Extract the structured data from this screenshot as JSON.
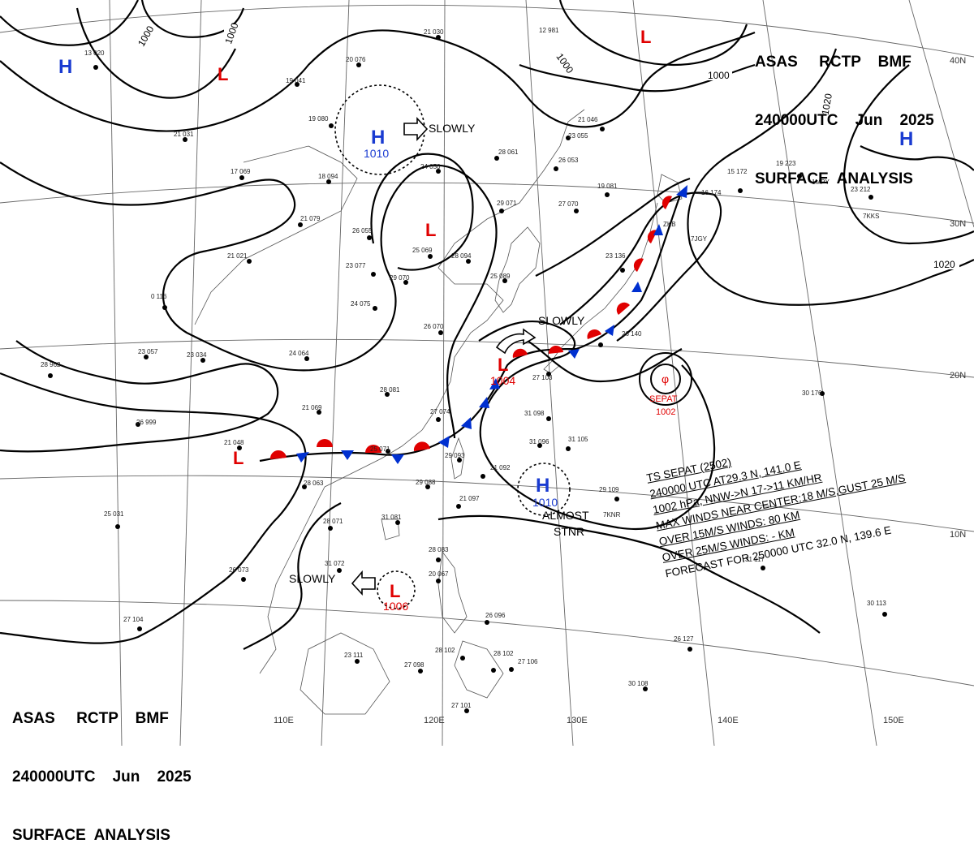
{
  "header": {
    "line1": "ASAS     RCTP    BMF",
    "line2": "240000UTC    Jun    2025",
    "line3": "SURFACE  ANALYSIS"
  },
  "longitude_labels": [
    "110E",
    "120E",
    "130E",
    "140E",
    "150E"
  ],
  "latitude_labels": [
    "40N",
    "30N",
    "20N",
    "10N"
  ],
  "isobar_labels": [
    "1000",
    "1000",
    "1000",
    "1000",
    "1020",
    "1020"
  ],
  "pressure_centers": [
    {
      "type": "H",
      "value": ""
    },
    {
      "type": "L",
      "value": ""
    },
    {
      "type": "H",
      "value": "1010"
    },
    {
      "type": "L",
      "value": ""
    },
    {
      "type": "L",
      "value": ""
    },
    {
      "type": "H",
      "value": ""
    },
    {
      "type": "L",
      "value": "1004"
    },
    {
      "type": "L",
      "value": ""
    },
    {
      "type": "H",
      "value": "1010"
    },
    {
      "type": "L",
      "value": "1006"
    }
  ],
  "movement_labels": {
    "north": "SLOWLY",
    "front": "SLOWLY",
    "south": "SLOWLY",
    "stationary_a": "ALMOST",
    "stationary_b": "STNR"
  },
  "typhoon": {
    "name": "SEPAT",
    "pressure": "1002",
    "bulletin": [
      "TS  SEPAT  (2502)",
      "240000 UTC  AT29.3 N, 141.0 E",
      "1002 hPa, NNW->N  17->11 KM/HR",
      "MAX WINDS NEAR CENTER:18 M/S,GUST 25 M/S",
      "OVER 15M/S WINDS: 80 KM",
      "OVER 25M/S WINDS: - KM",
      "FORECAST FOR 250000 UTC 32.0 N, 139.6 E"
    ]
  },
  "station_plots": [
    {
      "code": "13 020"
    },
    {
      "code": "20 076"
    },
    {
      "code": "21 030"
    },
    {
      "code": "19 041"
    },
    {
      "code": "19 080"
    },
    {
      "code": "21 031"
    },
    {
      "code": "17 069"
    },
    {
      "code": "18 094"
    },
    {
      "code": "24 056"
    },
    {
      "code": "28 061"
    },
    {
      "code": "23 055"
    },
    {
      "code": "26 053"
    },
    {
      "code": "21 079"
    },
    {
      "code": "26 055"
    },
    {
      "code": "29 071"
    },
    {
      "code": "25 069"
    },
    {
      "code": "28 094"
    },
    {
      "code": "23 077"
    },
    {
      "code": "29 070"
    },
    {
      "code": "25 089"
    },
    {
      "code": "21 021"
    },
    {
      "code": "0 116"
    },
    {
      "code": "24 075"
    },
    {
      "code": "26 070"
    },
    {
      "code": "23 057"
    },
    {
      "code": "24 064"
    },
    {
      "code": "23 034"
    },
    {
      "code": "28 962"
    },
    {
      "code": "28 081"
    },
    {
      "code": "27 074"
    },
    {
      "code": "21 069"
    },
    {
      "code": "27 103"
    },
    {
      "code": "26 999"
    },
    {
      "code": "31 098"
    },
    {
      "code": "21 048"
    },
    {
      "code": "25 071"
    },
    {
      "code": "29 093"
    },
    {
      "code": "31 096"
    },
    {
      "code": "31 105"
    },
    {
      "code": "21 092"
    },
    {
      "code": "29 088"
    },
    {
      "code": "28 063"
    },
    {
      "code": "21 097"
    },
    {
      "code": "28 071"
    },
    {
      "code": "31 081"
    },
    {
      "code": "25 031"
    },
    {
      "code": "29 109"
    },
    {
      "code": "26 073"
    },
    {
      "code": "31 072"
    },
    {
      "code": "28 083"
    },
    {
      "code": "20 067"
    },
    {
      "code": "31 117"
    },
    {
      "code": "26 096"
    },
    {
      "code": "27 104"
    },
    {
      "code": "23 111"
    },
    {
      "code": "27 098"
    },
    {
      "code": "28 102"
    },
    {
      "code": "28 102"
    },
    {
      "code": "27 106"
    },
    {
      "code": "26 127"
    },
    {
      "code": "30 113"
    },
    {
      "code": "30 108"
    },
    {
      "code": "27 101"
    },
    {
      "code": "30 176"
    },
    {
      "code": "15 172"
    },
    {
      "code": "16 174"
    },
    {
      "code": "19 223"
    },
    {
      "code": "23 212"
    },
    {
      "code": "21 046"
    },
    {
      "code": "27 070"
    },
    {
      "code": "19 081"
    },
    {
      "code": "23 136"
    },
    {
      "code": "26 140"
    },
    {
      "code": "12 981"
    }
  ],
  "station_ids": [
    "7KKS",
    "7JGY",
    "7KNR",
    "ZKB",
    "1MPY"
  ]
}
